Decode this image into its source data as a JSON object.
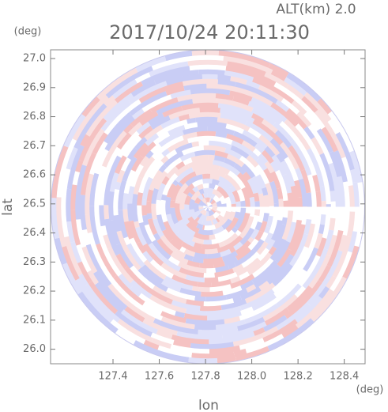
{
  "chart_data": {
    "type": "radar-ppi",
    "title": "2017/10/24 20:11:30",
    "subtitle": "ALT(km) 2.0",
    "x_label": "lon",
    "y_label": "lat",
    "x_unit": "(deg)",
    "y_unit": "(deg)",
    "xlim": [
      127.13,
      128.49
    ],
    "ylim": [
      25.95,
      27.03
    ],
    "xticks": [
      127.4,
      127.6,
      127.8,
      {
        "value": 128.0,
        "label": "128.0"
      },
      128.2,
      128.4
    ],
    "yticks": [
      {
        "value": 26.0,
        "label": "26.0"
      },
      26.1,
      26.2,
      26.3,
      26.4,
      26.5,
      26.6,
      26.7,
      26.8,
      26.9,
      {
        "value": 27.0,
        "label": "27.0"
      }
    ]
  }
}
